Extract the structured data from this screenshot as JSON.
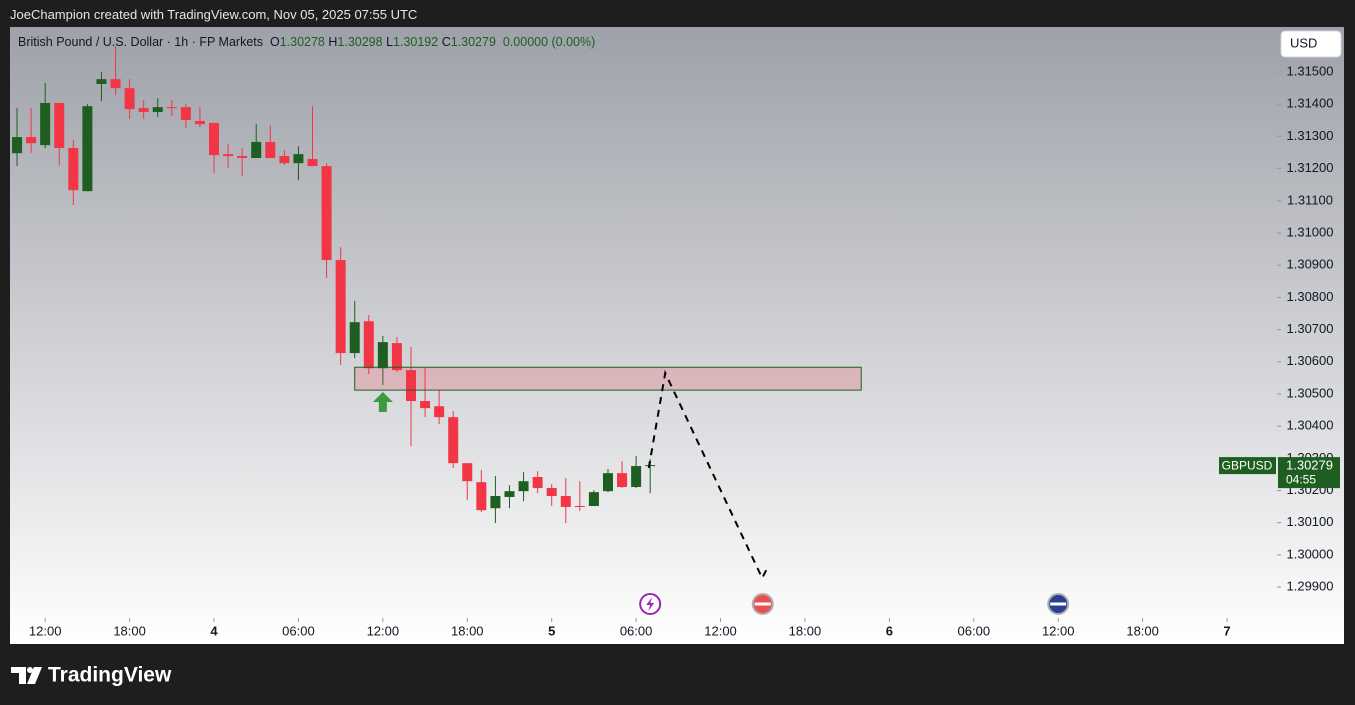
{
  "header": {
    "credit": "JoeChampion created with TradingView.com, Nov 05, 2025 07:55 UTC",
    "brand": "TradingView"
  },
  "chart_data": {
    "type": "candlestick",
    "symbol": "British Pound / U.S. Dollar · 1h · FP Markets",
    "ohlc_labels": [
      "O",
      "H",
      "L",
      "C"
    ],
    "change": "0.00000 (0.00%)",
    "currency": "USD",
    "ticker": "GBPUSD",
    "countdown": "04:55",
    "up_color": "#1e5e20",
    "down_color": "#f23645",
    "x": [
      10,
      11,
      12,
      13,
      14,
      15,
      16,
      17,
      18,
      19,
      20,
      21,
      22,
      23,
      24,
      25,
      26,
      27,
      28,
      29,
      30,
      31,
      32,
      33,
      34,
      35,
      36,
      37,
      38,
      39,
      40,
      41,
      42,
      43,
      44,
      45,
      46,
      47,
      48,
      49,
      50,
      51,
      52,
      53,
      54,
      55
    ],
    "open": [
      1.31248,
      1.31298,
      1.31273,
      1.31404,
      1.31264,
      1.3113,
      1.31463,
      1.31478,
      1.3145,
      1.31388,
      1.31376,
      1.31391,
      1.31391,
      1.31348,
      1.31342,
      1.31245,
      1.31239,
      1.31233,
      1.31283,
      1.31239,
      1.31217,
      1.3123,
      1.31208,
      1.30916,
      1.30627,
      1.30726,
      1.3058,
      1.30658,
      1.30574,
      1.30478,
      1.30462,
      1.30428,
      1.30285,
      1.30226,
      1.30145,
      1.3018,
      1.30198,
      1.30242,
      1.30208,
      1.30183,
      1.30152,
      1.30152,
      1.30198,
      1.30254,
      1.30211,
      1.30278
    ],
    "high": [
      1.31388,
      1.31388,
      1.31466,
      1.31404,
      1.31289,
      1.31401,
      1.315,
      1.31581,
      1.31478,
      1.31413,
      1.31419,
      1.31413,
      1.31401,
      1.31391,
      1.31342,
      1.31276,
      1.31264,
      1.31338,
      1.31335,
      1.31258,
      1.3127,
      1.31394,
      1.31217,
      1.30956,
      1.30789,
      1.30745,
      1.3068,
      1.30677,
      1.30646,
      1.3058,
      1.30512,
      1.30447,
      1.30285,
      1.30264,
      1.30245,
      1.30217,
      1.30257,
      1.3026,
      1.3022,
      1.30239,
      1.30229,
      1.30201,
      1.30267,
      1.30291,
      1.30307,
      1.30298
    ],
    "low": [
      1.31208,
      1.31248,
      1.31264,
      1.31211,
      1.31087,
      1.3113,
      1.3141,
      1.31429,
      1.31354,
      1.31354,
      1.3136,
      1.31363,
      1.31326,
      1.31329,
      1.31186,
      1.31202,
      1.31177,
      1.31233,
      1.31233,
      1.31211,
      1.31164,
      1.31208,
      1.3086,
      1.3059,
      1.30611,
      1.30562,
      1.30528,
      1.30568,
      1.30338,
      1.30428,
      1.30406,
      1.3027,
      1.3017,
      1.30133,
      1.30099,
      1.30145,
      1.30167,
      1.30192,
      1.30152,
      1.30099,
      1.30136,
      1.30152,
      1.30195,
      1.30208,
      1.30208,
      1.30192
    ],
    "close": [
      1.31298,
      1.31279,
      1.31404,
      1.31264,
      1.31133,
      1.31394,
      1.31478,
      1.3145,
      1.31385,
      1.31376,
      1.31391,
      1.31388,
      1.31351,
      1.31338,
      1.31242,
      1.31239,
      1.31233,
      1.31283,
      1.31233,
      1.31217,
      1.31245,
      1.31208,
      1.30916,
      1.30627,
      1.30723,
      1.3058,
      1.30661,
      1.30574,
      1.30478,
      1.30456,
      1.30428,
      1.30285,
      1.30229,
      1.30139,
      1.30183,
      1.30198,
      1.30229,
      1.30208,
      1.30183,
      1.30149,
      1.30149,
      1.30195,
      1.30254,
      1.30211,
      1.30276,
      1.30279
    ],
    "xlim": [
      9.5,
      99.55
    ],
    "xticks": [
      {
        "value": 12,
        "label": "12:00"
      },
      {
        "value": 18,
        "label": "18:00"
      },
      {
        "value": 24,
        "label": "4"
      },
      {
        "value": 30,
        "label": "06:00"
      },
      {
        "value": 36,
        "label": "12:00"
      },
      {
        "value": 42,
        "label": "18:00"
      },
      {
        "value": 48,
        "label": "5"
      },
      {
        "value": 54,
        "label": "06:00"
      },
      {
        "value": 60,
        "label": "12:00"
      },
      {
        "value": 66,
        "label": "18:00"
      },
      {
        "value": 72,
        "label": "6"
      },
      {
        "value": 78,
        "label": "06:00"
      },
      {
        "value": 84,
        "label": "12:00"
      },
      {
        "value": 90,
        "label": "18:00"
      },
      {
        "value": 96,
        "label": "7"
      }
    ],
    "ylim": [
      1.29804,
      1.3164
    ],
    "yticks": [
      {
        "value": 1.299,
        "label": "1.29900"
      },
      {
        "value": 1.3,
        "label": "1.30000"
      },
      {
        "value": 1.301,
        "label": "1.30100"
      },
      {
        "value": 1.302,
        "label": "1.30200"
      },
      {
        "value": 1.303,
        "label": "1.30300"
      },
      {
        "value": 1.304,
        "label": "1.30400"
      },
      {
        "value": 1.305,
        "label": "1.30500"
      },
      {
        "value": 1.306,
        "label": "1.30600"
      },
      {
        "value": 1.307,
        "label": "1.30700"
      },
      {
        "value": 1.308,
        "label": "1.30800"
      },
      {
        "value": 1.309,
        "label": "1.30900"
      },
      {
        "value": 1.31,
        "label": "1.31000"
      },
      {
        "value": 1.311,
        "label": "1.31100"
      },
      {
        "value": 1.312,
        "label": "1.31200"
      },
      {
        "value": 1.313,
        "label": "1.31300"
      },
      {
        "value": 1.314,
        "label": "1.31400"
      },
      {
        "value": 1.315,
        "label": "1.31500"
      }
    ],
    "zone": {
      "x": [
        34,
        70
      ],
      "y": [
        1.30512,
        1.30583
      ]
    },
    "projection": {
      "x": [
        54.9,
        56.07,
        62.96,
        63.39
      ],
      "y": [
        1.3027,
        1.30565,
        1.29928,
        1.29965
      ]
    },
    "arrow": {
      "x": 36,
      "y": 1.30506
    },
    "events": [
      55,
      63,
      84
    ]
  }
}
